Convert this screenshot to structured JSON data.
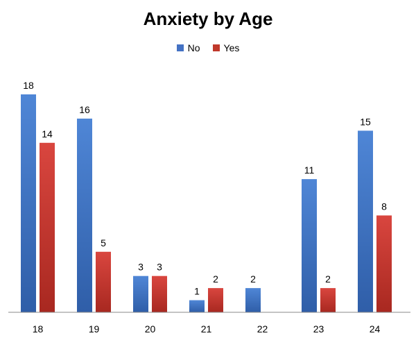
{
  "chart_data": {
    "type": "bar",
    "title": "Anxiety by Age",
    "xlabel": "",
    "ylabel": "",
    "categories": [
      "18",
      "19",
      "20",
      "21",
      "22",
      "23",
      "24"
    ],
    "series": [
      {
        "name": "No",
        "color": "#4472c4",
        "values": [
          18,
          16,
          3,
          1,
          2,
          11,
          15
        ]
      },
      {
        "name": "Yes",
        "color": "#c0392b",
        "values": [
          14,
          5,
          3,
          2,
          null,
          2,
          8
        ]
      }
    ],
    "ylim": [
      0,
      18
    ],
    "grid": false,
    "legend": "top-center",
    "data_labels": true
  }
}
